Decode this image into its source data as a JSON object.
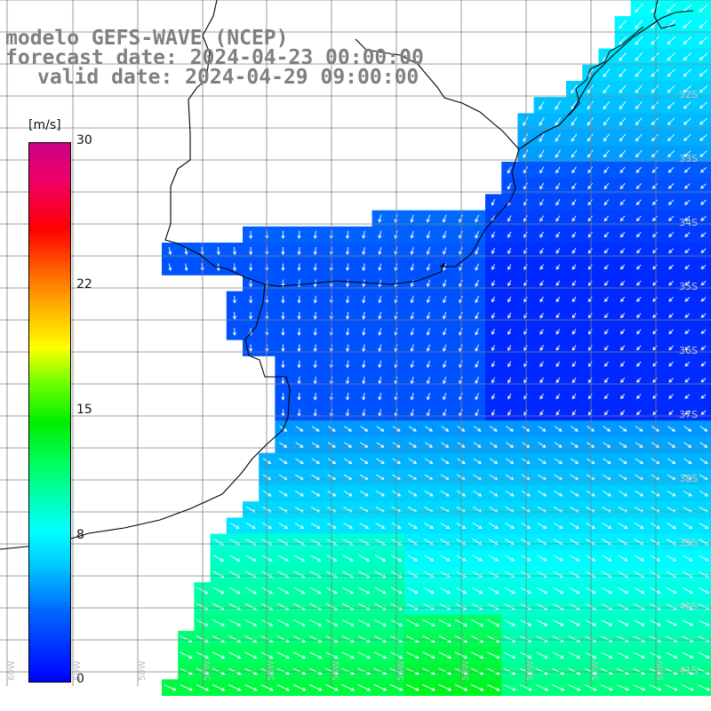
{
  "titles": {
    "model": "modelo GEFS-WAVE (NCEP)",
    "forecast": "forecast date: 2024-04-23 00:00:00",
    "valid": "valid date: 2024-04-29 09:00:00"
  },
  "colorbar": {
    "unit": "[m/s]",
    "ticks": [
      {
        "label": "30",
        "value": 30
      },
      {
        "label": "22",
        "value": 22
      },
      {
        "label": "15",
        "value": 15
      },
      {
        "label": "8",
        "value": 8
      },
      {
        "label": "0",
        "value": 0
      }
    ],
    "range": [
      0,
      30
    ]
  },
  "lat_labels": [
    "32S",
    "33S",
    "34S",
    "35S",
    "36S",
    "37S",
    "38S",
    "39S",
    "40S",
    "41S"
  ],
  "lon_labels": [
    "60W",
    "59W",
    "58W",
    "57W",
    "56W",
    "55W",
    "54W",
    "53W",
    "52W",
    "51W",
    "50W"
  ],
  "colors": {
    "land": "#ffffff",
    "coast": "#000000",
    "grid": "#808080",
    "arrows": "#ffffff"
  }
}
